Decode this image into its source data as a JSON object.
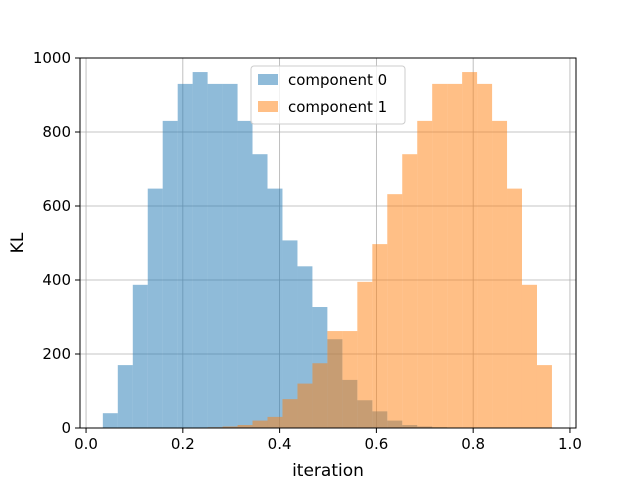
{
  "chart_data": {
    "type": "bar",
    "title": "",
    "xlabel": "iteration",
    "ylabel": "KL",
    "xlim": [
      -0.0125,
      1.0125
    ],
    "ylim": [
      0,
      1000
    ],
    "xticks": [
      0.0,
      0.2,
      0.4,
      0.6,
      0.8,
      1.0
    ],
    "xtick_labels": [
      "0.0",
      "0.2",
      "0.4",
      "0.6",
      "0.8",
      "1.0"
    ],
    "yticks": [
      0,
      200,
      400,
      600,
      800,
      1000
    ],
    "ytick_labels": [
      "0",
      "200",
      "400",
      "600",
      "800",
      "1000"
    ],
    "grid": true,
    "legend_position": "top-center",
    "bin_edges": [
      0.0347,
      0.0656,
      0.0966,
      0.1275,
      0.1584,
      0.1894,
      0.2203,
      0.2512,
      0.2822,
      0.3131,
      0.344,
      0.375,
      0.4059,
      0.4369,
      0.4678,
      0.4987,
      0.5297,
      0.5606,
      0.5916,
      0.6225,
      0.6534,
      0.6844,
      0.7153,
      0.7462,
      0.7772,
      0.8081,
      0.8391,
      0.87,
      0.9009,
      0.9319,
      0.9628
    ],
    "series": [
      {
        "name": "component 0",
        "color": "#1f77b4",
        "alpha": 0.5,
        "values": [
          40,
          170,
          387,
          647,
          830,
          930,
          962,
          930,
          930,
          830,
          740,
          647,
          507,
          437,
          327,
          240,
          130,
          75,
          45,
          20,
          8,
          4,
          2,
          1,
          0,
          0,
          0,
          0,
          0,
          0
        ]
      },
      {
        "name": "component 1",
        "color": "#ff7f0e",
        "alpha": 0.5,
        "values": [
          0,
          0,
          0,
          0,
          0,
          0,
          1,
          2,
          4,
          8,
          20,
          30,
          78,
          120,
          175,
          262,
          262,
          395,
          497,
          632,
          740,
          830,
          930,
          930,
          962,
          930,
          830,
          647,
          387,
          170
        ]
      }
    ]
  }
}
